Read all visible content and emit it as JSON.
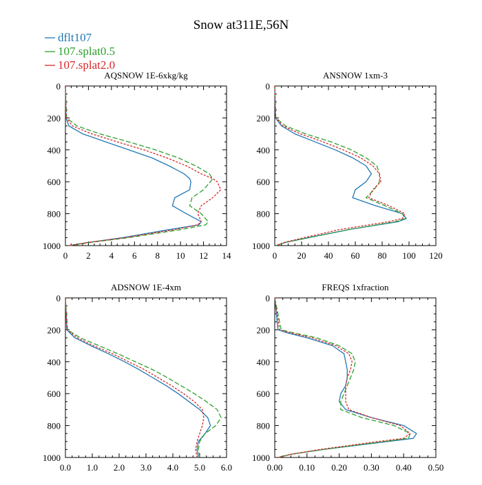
{
  "figure_title": "Snow at311E,56N",
  "legend": [
    {
      "label": "dflt107",
      "color": "#1f77b4",
      "dash": "solid"
    },
    {
      "label": "107.splat0.5",
      "color": "#2ca02c",
      "dash": "dashed"
    },
    {
      "label": "107.splat2.0",
      "color": "#d62728",
      "dash": "dotted"
    }
  ],
  "chart_data": [
    {
      "type": "line",
      "title": "AQSNOW  1E-6xkg/kg",
      "xlim": [
        0,
        14
      ],
      "ylim": [
        1000,
        0
      ],
      "xticks": [
        0,
        2,
        4,
        6,
        8,
        10,
        12,
        14
      ],
      "xtick_labels": [
        "0",
        "2",
        "4",
        "6",
        "8",
        "10",
        "12",
        "14"
      ],
      "yticks": [
        0,
        200,
        400,
        600,
        800,
        1000
      ],
      "ytick_labels": [
        "0",
        "200",
        "400",
        "600",
        "800",
        "1000"
      ],
      "y": [
        0,
        200,
        250,
        300,
        350,
        400,
        450,
        500,
        550,
        580,
        600,
        650,
        700,
        750,
        800,
        850,
        870,
        900,
        950,
        980,
        1000
      ],
      "series": [
        {
          "name": "dflt107",
          "values": [
            0,
            0.05,
            0.3,
            1.5,
            3.5,
            5.5,
            7.5,
            9.0,
            10.3,
            10.8,
            10.9,
            10.8,
            9.5,
            9.3,
            10.5,
            11.8,
            11.6,
            9.0,
            5.0,
            2.0,
            0.3
          ]
        },
        {
          "name": "107.splat0.5",
          "values": [
            0,
            0.1,
            1.0,
            3.0,
            5.5,
            7.8,
            9.8,
            11.3,
            12.5,
            12.8,
            12.6,
            12.0,
            11.0,
            10.8,
            11.8,
            12.4,
            12.2,
            10.0,
            5.5,
            2.2,
            0.4
          ]
        },
        {
          "name": "107.splat2.0",
          "values": [
            0,
            0.08,
            0.6,
            2.3,
            4.5,
            6.8,
            8.8,
            10.5,
            11.8,
            12.8,
            13.2,
            13.5,
            12.8,
            11.8,
            11.5,
            11.8,
            11.5,
            9.5,
            5.2,
            2.0,
            0.3
          ]
        }
      ]
    },
    {
      "type": "line",
      "title": "ANSNOW  1xm-3",
      "xlim": [
        0,
        120
      ],
      "ylim": [
        1000,
        0
      ],
      "xticks": [
        0,
        20,
        40,
        60,
        80,
        100,
        120
      ],
      "xtick_labels": [
        "0",
        "20",
        "40",
        "60",
        "80",
        "100",
        "120"
      ],
      "yticks": [
        0,
        200,
        400,
        600,
        800,
        1000
      ],
      "ytick_labels": [
        "0",
        "200",
        "400",
        "600",
        "800",
        "1000"
      ],
      "y": [
        0,
        200,
        250,
        300,
        350,
        400,
        450,
        500,
        550,
        600,
        650,
        700,
        750,
        800,
        830,
        850,
        900,
        950,
        980,
        1000
      ],
      "series": [
        {
          "name": "dflt107",
          "values": [
            0,
            0.5,
            5,
            15,
            30,
            45,
            58,
            68,
            72,
            68,
            60,
            58,
            75,
            95,
            98,
            92,
            55,
            25,
            8,
            1
          ]
        },
        {
          "name": "107.splat0.5",
          "values": [
            0,
            0.8,
            8,
            23,
            42,
            57,
            68,
            76,
            78,
            78,
            74,
            68,
            82,
            95,
            97,
            90,
            55,
            26,
            8,
            1
          ]
        },
        {
          "name": "107.splat2.0",
          "values": [
            0,
            0.7,
            6,
            19,
            36,
            51,
            64,
            73,
            78,
            79,
            73,
            70,
            85,
            97,
            95,
            85,
            48,
            22,
            7,
            1
          ]
        }
      ]
    },
    {
      "type": "line",
      "title": "ADSNOW  1E-4xm",
      "xlim": [
        0,
        6
      ],
      "ylim": [
        1000,
        0
      ],
      "xticks": [
        0,
        1,
        2,
        3,
        4,
        5,
        6
      ],
      "xtick_labels": [
        "0.0",
        "1.0",
        "2.0",
        "3.0",
        "4.0",
        "5.0",
        "6.0"
      ],
      "yticks": [
        0,
        200,
        400,
        600,
        800,
        1000
      ],
      "ytick_labels": [
        "0",
        "200",
        "400",
        "600",
        "800",
        "1000"
      ],
      "y": [
        0,
        200,
        250,
        300,
        350,
        400,
        450,
        500,
        550,
        600,
        650,
        700,
        750,
        800,
        850,
        900,
        950,
        1000
      ],
      "series": [
        {
          "name": "dflt107",
          "values": [
            0,
            0.05,
            0.35,
            0.95,
            1.6,
            2.2,
            2.75,
            3.25,
            3.75,
            4.2,
            4.6,
            5.0,
            5.3,
            5.4,
            5.2,
            4.95,
            4.9,
            4.95
          ]
        },
        {
          "name": "107.splat0.5",
          "values": [
            0,
            0.08,
            0.55,
            1.25,
            1.95,
            2.6,
            3.25,
            3.8,
            4.3,
            4.8,
            5.25,
            5.65,
            5.8,
            5.6,
            5.2,
            5.0,
            4.95,
            5.0
          ]
        },
        {
          "name": "107.splat2.0",
          "values": [
            0,
            0.06,
            0.45,
            1.05,
            1.75,
            2.35,
            2.95,
            3.45,
            3.95,
            4.4,
            4.8,
            5.1,
            5.15,
            5.1,
            5.0,
            4.9,
            4.85,
            4.9
          ]
        }
      ]
    },
    {
      "type": "line",
      "title": "FREQS  1xfraction",
      "xlim": [
        0,
        0.5
      ],
      "ylim": [
        1000,
        0
      ],
      "xticks": [
        0,
        0.1,
        0.2,
        0.3,
        0.4,
        0.5
      ],
      "xtick_labels": [
        "0.00",
        "0.10",
        "0.20",
        "0.30",
        "0.40",
        "0.50"
      ],
      "yticks": [
        0,
        200,
        400,
        600,
        800,
        1000
      ],
      "ytick_labels": [
        "0",
        "200",
        "400",
        "600",
        "800",
        "1000"
      ],
      "y": [
        0,
        200,
        220,
        250,
        300,
        350,
        400,
        450,
        500,
        550,
        600,
        650,
        700,
        750,
        800,
        850,
        880,
        900,
        950,
        980,
        1000
      ],
      "series": [
        {
          "name": "dflt107",
          "values": [
            0,
            0.01,
            0.04,
            0.1,
            0.18,
            0.215,
            0.22,
            0.225,
            0.225,
            0.22,
            0.205,
            0.2,
            0.22,
            0.3,
            0.4,
            0.44,
            0.43,
            0.35,
            0.15,
            0.05,
            0.01
          ]
        },
        {
          "name": "107.splat0.5",
          "values": [
            0,
            0.02,
            0.06,
            0.13,
            0.2,
            0.24,
            0.25,
            0.245,
            0.235,
            0.225,
            0.215,
            0.205,
            0.205,
            0.27,
            0.37,
            0.42,
            0.415,
            0.34,
            0.15,
            0.05,
            0.01
          ]
        },
        {
          "name": "107.splat2.0",
          "values": [
            0,
            0.015,
            0.05,
            0.115,
            0.19,
            0.23,
            0.24,
            0.235,
            0.225,
            0.22,
            0.22,
            0.22,
            0.23,
            0.3,
            0.39,
            0.42,
            0.4,
            0.32,
            0.14,
            0.05,
            0.01
          ]
        }
      ]
    }
  ]
}
